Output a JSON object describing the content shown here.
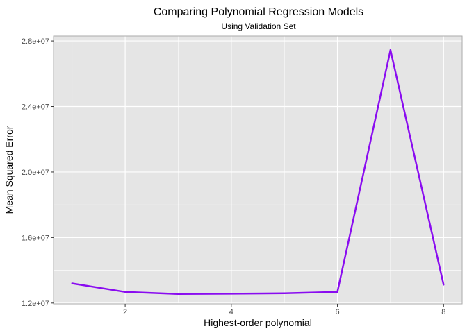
{
  "chart_data": {
    "type": "line",
    "title": "Comparing Polynomial Regression Models",
    "subtitle": "Using Validation Set",
    "xlabel": "Highest-order polynomial",
    "ylabel": "Mean Squared Error",
    "x": [
      1,
      2,
      3,
      4,
      5,
      6,
      7,
      8
    ],
    "y": [
      13200000,
      12680000,
      12550000,
      12570000,
      12600000,
      12680000,
      27450000,
      13120000
    ],
    "xlim": [
      0.65,
      8.35
    ],
    "ylim": [
      11950000,
      28300000
    ],
    "x_ticks": [
      2,
      4,
      6,
      8
    ],
    "x_tick_labels": [
      "2",
      "4",
      "6",
      "8"
    ],
    "x_minor_ticks": [
      1,
      3,
      5,
      7
    ],
    "y_ticks": [
      12000000,
      16000000,
      20000000,
      24000000,
      28000000
    ],
    "y_tick_labels": [
      "1.2e+07",
      "1.6e+07",
      "2.0e+07",
      "2.4e+07",
      "2.8e+07"
    ],
    "y_minor_ticks": [
      14000000,
      18000000,
      22000000,
      26000000
    ],
    "grid": true,
    "legend": "none",
    "colors": {
      "line": "#8a0cf0",
      "panel_background": "#e5e5e5",
      "grid": "#ffffff",
      "panel_border": "#aaaaaa",
      "tick_text": "#4d4d4d"
    }
  }
}
